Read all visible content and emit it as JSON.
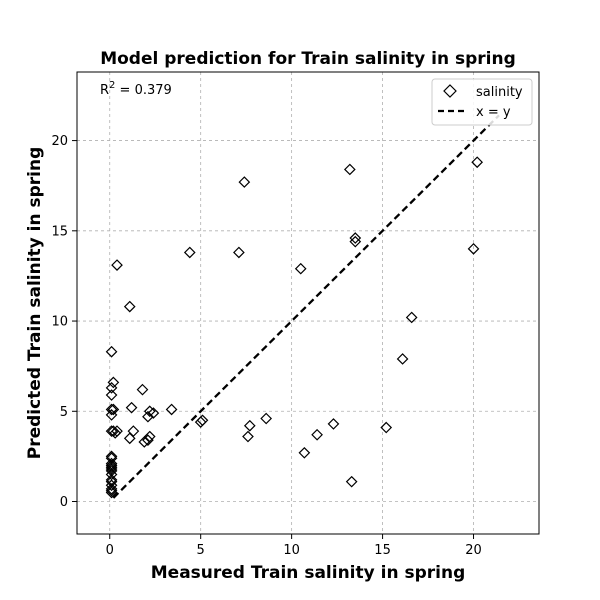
{
  "chart_data": {
    "type": "scatter",
    "title": "Model prediction for Train salinity in spring",
    "xlabel": "Measured Train salinity in spring",
    "ylabel": "Predicted Train salinity in spring",
    "annotation": {
      "r2_label": "R",
      "r2_superscript": "2",
      "r2_value_text": " = 0.379"
    },
    "xlim": [
      -1.8,
      23.6
    ],
    "ylim": [
      -1.8,
      23.8
    ],
    "xticks": [
      0,
      5,
      10,
      15,
      20
    ],
    "yticks": [
      0,
      5,
      10,
      15,
      20
    ],
    "grid": true,
    "legend_location": "upper right",
    "colors": {
      "marker_edge": "#000000",
      "marker_face": "#ffffff",
      "line": "#000000",
      "grid": "#b0b0b0"
    },
    "series": [
      {
        "name": "salinity",
        "marker": "diamond",
        "points": [
          [
            0.1,
            0.5
          ],
          [
            0.1,
            0.6
          ],
          [
            0.1,
            0.7
          ],
          [
            0.1,
            0.9
          ],
          [
            0.1,
            1.1
          ],
          [
            0.1,
            1.2
          ],
          [
            0.1,
            1.5
          ],
          [
            0.1,
            1.7
          ],
          [
            0.1,
            1.8
          ],
          [
            0.1,
            1.9
          ],
          [
            0.1,
            2.0
          ],
          [
            0.1,
            2.1
          ],
          [
            0.1,
            2.4
          ],
          [
            0.1,
            2.5
          ],
          [
            0.1,
            3.9
          ],
          [
            0.2,
            3.9
          ],
          [
            0.3,
            3.8
          ],
          [
            0.4,
            3.9
          ],
          [
            0.1,
            4.8
          ],
          [
            0.1,
            5.1
          ],
          [
            0.2,
            5.1
          ],
          [
            0.1,
            5.9
          ],
          [
            0.1,
            6.3
          ],
          [
            0.2,
            6.6
          ],
          [
            0.1,
            8.3
          ],
          [
            0.4,
            13.1
          ],
          [
            1.1,
            3.5
          ],
          [
            1.3,
            3.9
          ],
          [
            1.2,
            5.2
          ],
          [
            1.1,
            10.8
          ],
          [
            1.9,
            3.3
          ],
          [
            2.1,
            3.4
          ],
          [
            2.2,
            3.6
          ],
          [
            2.1,
            4.7
          ],
          [
            2.2,
            5.0
          ],
          [
            2.4,
            4.9
          ],
          [
            1.8,
            6.2
          ],
          [
            3.4,
            5.1
          ],
          [
            4.4,
            13.8
          ],
          [
            5.0,
            4.4
          ],
          [
            5.1,
            4.5
          ],
          [
            7.1,
            13.8
          ],
          [
            7.4,
            17.7
          ],
          [
            7.6,
            3.6
          ],
          [
            7.7,
            4.2
          ],
          [
            8.6,
            4.6
          ],
          [
            10.5,
            12.9
          ],
          [
            10.7,
            2.7
          ],
          [
            11.4,
            3.7
          ],
          [
            12.3,
            4.3
          ],
          [
            13.2,
            18.4
          ],
          [
            13.3,
            1.1
          ],
          [
            13.5,
            14.6
          ],
          [
            13.5,
            14.4
          ],
          [
            15.2,
            4.1
          ],
          [
            16.1,
            7.9
          ],
          [
            16.6,
            10.2
          ],
          [
            20.0,
            14.0
          ],
          [
            20.2,
            18.8
          ]
        ]
      },
      {
        "name": "x = y",
        "style": "dashed",
        "line": [
          [
            0.2,
            0.2
          ],
          [
            21.4,
            21.4
          ]
        ]
      }
    ]
  }
}
